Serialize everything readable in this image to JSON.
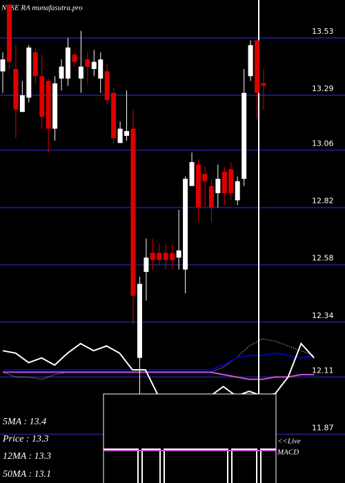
{
  "chart_data": {
    "type": "candlestick",
    "title": "NYSE RA munafasutra.pro",
    "ylim": [
      11.666,
      13.689
    ],
    "yticks": [
      13.53,
      13.29,
      13.06,
      12.82,
      12.58,
      12.34,
      12.11,
      11.87
    ],
    "grid": true,
    "grid_color": "#1b1b7a",
    "up_color": "#ffffff",
    "down_color": "#dd0000",
    "open": [
      13.39,
      13.67,
      13.4,
      13.22,
      13.28,
      13.47,
      13.37,
      13.35,
      13.15,
      13.36,
      13.36,
      13.46,
      13.36,
      13.44,
      13.4,
      13.36,
      13.39,
      13.3,
      13.09,
      13.12,
      13.15,
      12.19,
      12.55,
      12.63,
      12.63,
      12.63,
      12.63,
      12.61,
      12.56,
      12.91,
      13.0,
      12.96,
      12.91,
      12.88,
      12.97,
      12.98,
      12.85,
      12.94,
      13.37,
      13.52,
      13.34
    ],
    "high": [
      13.47,
      13.67,
      13.5,
      13.35,
      13.5,
      13.49,
      13.46,
      13.36,
      13.37,
      13.44,
      13.53,
      13.47,
      13.56,
      13.47,
      13.48,
      13.47,
      13.42,
      13.32,
      13.18,
      13.31,
      13.23,
      12.53,
      12.69,
      12.69,
      12.67,
      12.67,
      12.67,
      12.81,
      12.95,
      13.05,
      13.02,
      12.99,
      12.94,
      13.0,
      12.99,
      13.01,
      12.95,
      13.4,
      13.52,
      13.52,
      13.4
    ],
    "low": [
      13.3,
      13.4,
      13.11,
      13.22,
      13.26,
      13.34,
      13.15,
      13.05,
      13.1,
      13.31,
      13.33,
      13.41,
      13.3,
      13.34,
      13.37,
      13.3,
      13.25,
      13.09,
      13.09,
      13.1,
      12.33,
      11.98,
      12.43,
      12.56,
      12.58,
      12.56,
      12.56,
      12.56,
      12.46,
      12.91,
      12.76,
      12.82,
      12.76,
      12.82,
      12.83,
      12.85,
      12.83,
      12.91,
      13.35,
      13.19,
      13.23
    ],
    "close": [
      13.44,
      13.43,
      13.23,
      13.29,
      13.49,
      13.37,
      13.2,
      13.15,
      13.34,
      13.41,
      13.49,
      13.43,
      13.41,
      13.41,
      13.43,
      13.44,
      13.27,
      13.11,
      13.15,
      13.14,
      12.45,
      12.5,
      12.61,
      12.6,
      12.6,
      12.6,
      12.6,
      12.64,
      12.94,
      13.01,
      12.82,
      12.93,
      12.82,
      12.94,
      12.88,
      12.88,
      12.93,
      13.3,
      13.5,
      13.3,
      13.33
    ],
    "indicators": [
      {
        "color": "#ffffff",
        "style": "dotted",
        "values": [
          12.13,
          12.11,
          12.11,
          12.1,
          12.12,
          12.13,
          12.13,
          12.13,
          12.13,
          12.13,
          12.13,
          12.13,
          12.13,
          12.13,
          12.13,
          12.13,
          12.13,
          12.15,
          12.19,
          12.24,
          12.27,
          12.26,
          12.24,
          12.22,
          12.2
        ]
      },
      {
        "color": "#0000cc",
        "style": "solid",
        "values": [
          12.14,
          12.14,
          12.14,
          12.14,
          12.14,
          12.14,
          12.14,
          12.14,
          12.14,
          12.14,
          12.14,
          12.14,
          12.14,
          12.14,
          12.14,
          12.14,
          12.14,
          12.16,
          12.19,
          12.2,
          12.2,
          12.21,
          12.2,
          12.19,
          12.2
        ]
      },
      {
        "color": "#cc55cc",
        "style": "solid",
        "values": [
          12.13,
          12.13,
          12.13,
          12.13,
          12.13,
          12.13,
          12.13,
          12.13,
          12.13,
          12.13,
          12.13,
          12.13,
          12.13,
          12.13,
          12.13,
          12.13,
          12.13,
          12.12,
          12.11,
          12.1,
          12.1,
          12.11,
          12.11,
          12.12,
          12.12
        ]
      },
      {
        "color": "#ffffff",
        "style": "solid",
        "values": [
          12.22,
          12.21,
          12.17,
          12.19,
          12.16,
          12.21,
          12.25,
          12.22,
          12.24,
          12.21,
          12.14,
          12.14,
          12.03,
          12.03,
          12.03,
          12.03,
          12.03,
          12.07,
          12.03,
          12.05,
          12.03,
          12.04,
          12.11,
          12.25,
          12.19
        ]
      }
    ],
    "legend": [
      "5MA : 13.4",
      "Price  : 13.3",
      "12MA : 13.3",
      "50MA : 13.1"
    ],
    "macd_label": [
      "<<Live",
      "MACD"
    ]
  }
}
